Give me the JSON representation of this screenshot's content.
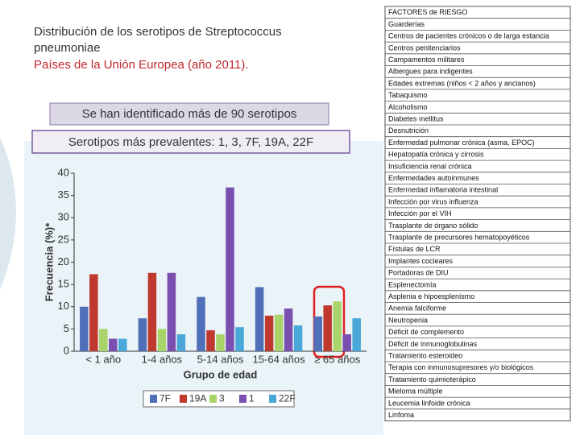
{
  "slide": {
    "title_lines": [
      "Distribución de los serotipos de Streptococcus",
      "pneumoniae"
    ],
    "subtitle": "Países de la Unión Europea (año 2011).",
    "note_1": "Se han identificado más de 90 serotipos",
    "note_2": "Serotipos más prevalentes:  1, 3, 7F, 19A, 22F"
  },
  "risk_factors": {
    "header": "FACTORES de RIESGO",
    "rows": [
      "Guarderías",
      "Centros de pacientes crónicos o de larga estancia",
      "Centros penitenciarios",
      "Campamentos militares",
      "Albergues para indigentes",
      "Edades extremas (niños < 2 años y ancianos)",
      "Tabaquismo",
      "Alcoholismo",
      "Diabetes mellitus",
      "Desnutrición",
      "Enfermedad pulmonar crónica (asma, EPOC)",
      "Hepatopatía crónica y cirrosis",
      "Insuficiencia renal crónica",
      "Enfermedades autoinmunes",
      "Enfermedad inflamatoria intestinal",
      "Infección por virus influenza",
      "Infección por el VIH",
      "Trasplante de órgano sólido",
      "Trasplante de precursores hematopoyéticos",
      "Fístulas de LCR",
      "Implantes cocleares",
      "Portadoras de DIU",
      "Esplenectomía",
      "Asplenia e hipoesplenismo",
      "Anemia falciforme",
      "Neutropenia",
      "Déficit de complemento",
      "Déficit de inmunoglobulinas",
      "Tratamiento esteroideo",
      "Terapia con inmunosupresores y/o biológicos",
      "Tratamiento quimioterápico",
      "Mieloma múltiple",
      "Leucemia linfoide crónica",
      "Linfoma"
    ]
  },
  "chart_data": {
    "type": "bar",
    "x_label": "Grupo de edad",
    "y_label": "Frecuencia (%)*",
    "categories": [
      "< 1 año",
      "1-4 años",
      "5-14 años",
      "15-64 años",
      "≥ 65 años"
    ],
    "series": [
      {
        "name": "7F",
        "color": "#4f6fb8",
        "values": [
          10,
          7.4,
          12.2,
          14.4,
          7.8
        ]
      },
      {
        "name": "19A",
        "color": "#c0392f",
        "values": [
          17.3,
          17.6,
          4.7,
          8,
          10.3
        ]
      },
      {
        "name": "3",
        "color": "#a8d46a",
        "values": [
          5,
          5,
          3.8,
          8.2,
          11.2
        ]
      },
      {
        "name": "1",
        "color": "#7a4fb0",
        "values": [
          2.8,
          17.6,
          36.8,
          9.6,
          3.8
        ]
      },
      {
        "name": "22F",
        "color": "#4aa8d8",
        "values": [
          2.8,
          3.8,
          5.4,
          5.8,
          7.4
        ]
      }
    ],
    "ylim": [
      0,
      40
    ],
    "yticks": [
      0,
      5,
      10,
      15,
      20,
      25,
      30,
      35,
      40
    ]
  }
}
